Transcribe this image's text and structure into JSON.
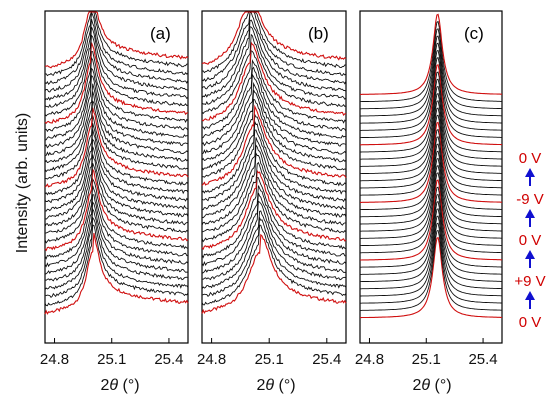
{
  "chart_data": {
    "type": "line",
    "ylabel": "Intensity (arb. units)",
    "panels": [
      {
        "label": "(a)",
        "xlabel_prefix": "2",
        "xlabel_symbol": "θ",
        "xlabel_suffix": " (°)",
        "xlim": [
          24.75,
          25.5
        ],
        "xticks": [
          "24.8",
          "25.1",
          "25.4"
        ],
        "xtick_values": [
          24.8,
          25.1,
          25.4
        ],
        "n_curves": 32,
        "peak_x_first": 25.0,
        "peak_x_last": 24.99,
        "peak_width": 0.04,
        "tail_decay": 0.33,
        "peak_height": 1.0,
        "base_level": 0.2
      },
      {
        "label": "(b)",
        "xlabel_prefix": "2",
        "xlabel_symbol": "θ",
        "xlabel_suffix": " (°)",
        "xlim": [
          24.75,
          25.5
        ],
        "xticks": [
          "24.8",
          "25.1",
          "25.4"
        ],
        "xtick_values": [
          24.8,
          25.1,
          25.4
        ],
        "n_curves": 32,
        "peak_x_first": 25.05,
        "peak_x_last": 24.99,
        "peak_width": 0.07,
        "tail_decay": 0.25,
        "peak_height": 1.0,
        "base_level": 0.2
      },
      {
        "label": "(c)",
        "xlabel_prefix": "2",
        "xlabel_symbol": "θ",
        "xlabel_suffix": " (°)",
        "xlim": [
          24.75,
          25.5
        ],
        "xticks": [
          "24.8",
          "25.1",
          "25.4"
        ],
        "xtick_values": [
          24.8,
          25.1,
          25.4
        ],
        "n_curves": 32,
        "peak_x_first": 25.16,
        "peak_x_last": 25.16,
        "peak_width": 0.03,
        "tail_decay": 0.0,
        "peak_height": 1.8,
        "base_level": 0.0
      }
    ],
    "red_curve_indices": [
      0,
      8,
      16,
      24,
      31
    ],
    "voltage_sequence": [
      "0 V",
      "-9 V",
      "0 V",
      "+9 V",
      "0 V"
    ],
    "colors": {
      "trace": "#111111",
      "trace_highlight": "#d01010",
      "voltage_text": "#d00000",
      "arrow": "#1010d0"
    }
  }
}
